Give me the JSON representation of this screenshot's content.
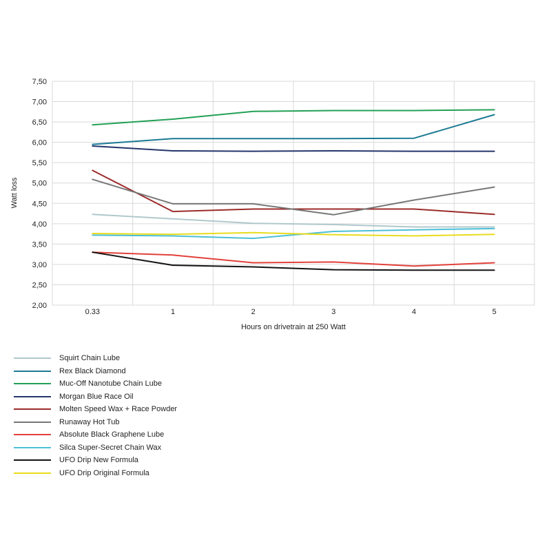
{
  "chart_data": {
    "type": "line",
    "title": "",
    "xlabel": "Hours on drivetrain at 250 Watt",
    "ylabel": "Watt loss",
    "categories": [
      "0.33",
      "1",
      "2",
      "3",
      "4",
      "5"
    ],
    "yticks": [
      "2,00",
      "2,50",
      "3,00",
      "3,50",
      "4,00",
      "4,50",
      "5,00",
      "5,50",
      "6,00",
      "6,50",
      "7,00",
      "7,50"
    ],
    "ylim": [
      2.0,
      7.5
    ],
    "grid": true,
    "legend_position": "bottom-left",
    "series": [
      {
        "name": "Squirt Chain Lube",
        "color": "#b0c8cc",
        "values": [
          4.23,
          4.12,
          4.01,
          3.98,
          3.92,
          3.92
        ]
      },
      {
        "name": "Rex Black Diamond",
        "color": "#1b7a94",
        "values": [
          5.95,
          6.09,
          6.09,
          6.09,
          6.1,
          6.68
        ]
      },
      {
        "name": "Muc-Off Nanotube Chain Lube",
        "color": "#22a055",
        "values": [
          6.43,
          6.57,
          6.76,
          6.78,
          6.78,
          6.8
        ]
      },
      {
        "name": "Morgan Blue Race Oil",
        "color": "#23356b",
        "values": [
          5.91,
          5.79,
          5.78,
          5.79,
          5.78,
          5.78
        ]
      },
      {
        "name": "Molten Speed Wax + Race Powder",
        "color": "#9c2a2a",
        "values": [
          5.31,
          4.3,
          4.36,
          4.36,
          4.36,
          4.23
        ]
      },
      {
        "name": "Runaway Hot Tub",
        "color": "#777777",
        "values": [
          5.09,
          4.49,
          4.49,
          4.22,
          4.58,
          4.9
        ]
      },
      {
        "name": "Absolute Black Graphene Lube",
        "color": "#e2403a",
        "values": [
          3.3,
          3.23,
          3.04,
          3.06,
          2.96,
          3.04
        ]
      },
      {
        "name": "Silca Super-Secret Chain Wax",
        "color": "#4bbfd6",
        "values": [
          3.72,
          3.7,
          3.64,
          3.81,
          3.85,
          3.88
        ]
      },
      {
        "name": "UFO Drip New Formula",
        "color": "#111111",
        "values": [
          3.3,
          2.98,
          2.94,
          2.87,
          2.86,
          2.86
        ]
      },
      {
        "name": "UFO Drip Original Formula",
        "color": "#e8dc1c",
        "values": [
          3.76,
          3.74,
          3.78,
          3.73,
          3.7,
          3.74
        ]
      }
    ]
  }
}
